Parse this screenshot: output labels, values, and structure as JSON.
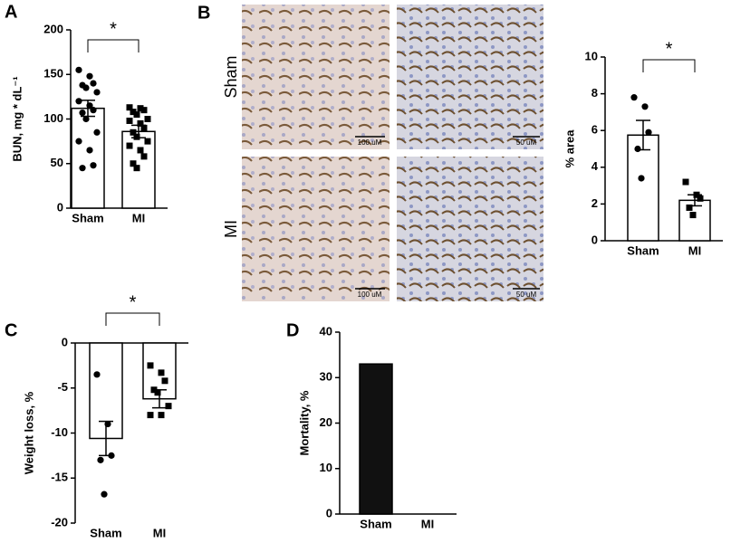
{
  "micrographs": {
    "panel_label": "B",
    "rows": [
      "Sham",
      "MI"
    ],
    "scale_labels": [
      [
        "100 uM",
        "50 uM"
      ],
      [
        "100 uM",
        "50 uM"
      ]
    ]
  },
  "chart_data": [
    {
      "type": "bar",
      "panel_label": "A",
      "ylabel": "BUN, mg * dL⁻¹",
      "categories": [
        "Sham",
        "MI"
      ],
      "values": [
        112,
        86
      ],
      "errors": [
        9,
        7
      ],
      "points": [
        [
          155,
          148,
          140,
          138,
          135,
          130,
          120,
          115,
          110,
          107,
          100,
          85,
          75,
          65,
          48,
          45
        ],
        [
          113,
          112,
          110,
          108,
          105,
          100,
          98,
          95,
          90,
          85,
          80,
          75,
          70,
          65,
          58,
          50,
          45
        ]
      ],
      "markers": [
        "circle",
        "square"
      ],
      "color": "#ffffff",
      "annotation": "*",
      "ylim": [
        0,
        200
      ],
      "yticks": [
        0,
        50,
        100,
        150,
        200
      ]
    },
    {
      "type": "bar",
      "ylabel": "% area",
      "categories": [
        "Sham",
        "MI"
      ],
      "values": [
        5.75,
        2.2
      ],
      "errors": [
        0.8,
        0.3
      ],
      "points": [
        [
          7.8,
          7.3,
          5.9,
          5.0,
          3.4
        ],
        [
          3.2,
          2.5,
          2.3,
          1.8,
          1.4
        ]
      ],
      "markers": [
        "circle",
        "square"
      ],
      "color": "#ffffff",
      "annotation": "*",
      "ylim": [
        0,
        10
      ],
      "yticks": [
        0,
        2,
        4,
        6,
        8,
        10
      ]
    },
    {
      "type": "bar",
      "panel_label": "C",
      "ylabel": "Weight loss, %",
      "categories": [
        "Sham",
        "MI"
      ],
      "values": [
        -10.6,
        -6.2
      ],
      "errors": [
        1.9,
        1.0
      ],
      "points": [
        [
          -3.5,
          -9,
          -12.5,
          -13,
          -16.8
        ],
        [
          -2.5,
          -3.3,
          -4.2,
          -5.2,
          -5.5,
          -7,
          -8,
          -8
        ]
      ],
      "markers": [
        "circle",
        "square"
      ],
      "color": "#ffffff",
      "annotation": "*",
      "ylim": [
        -20,
        0
      ],
      "yticks": [
        0,
        -5,
        -10,
        -15,
        -20
      ]
    },
    {
      "type": "bar",
      "panel_label": "D",
      "ylabel": "Mortality, %",
      "categories": [
        "Sham",
        "MI"
      ],
      "values": [
        33,
        0
      ],
      "color": "#111111",
      "ylim": [
        0,
        40
      ],
      "yticks": [
        0,
        10,
        20,
        30,
        40
      ]
    }
  ]
}
